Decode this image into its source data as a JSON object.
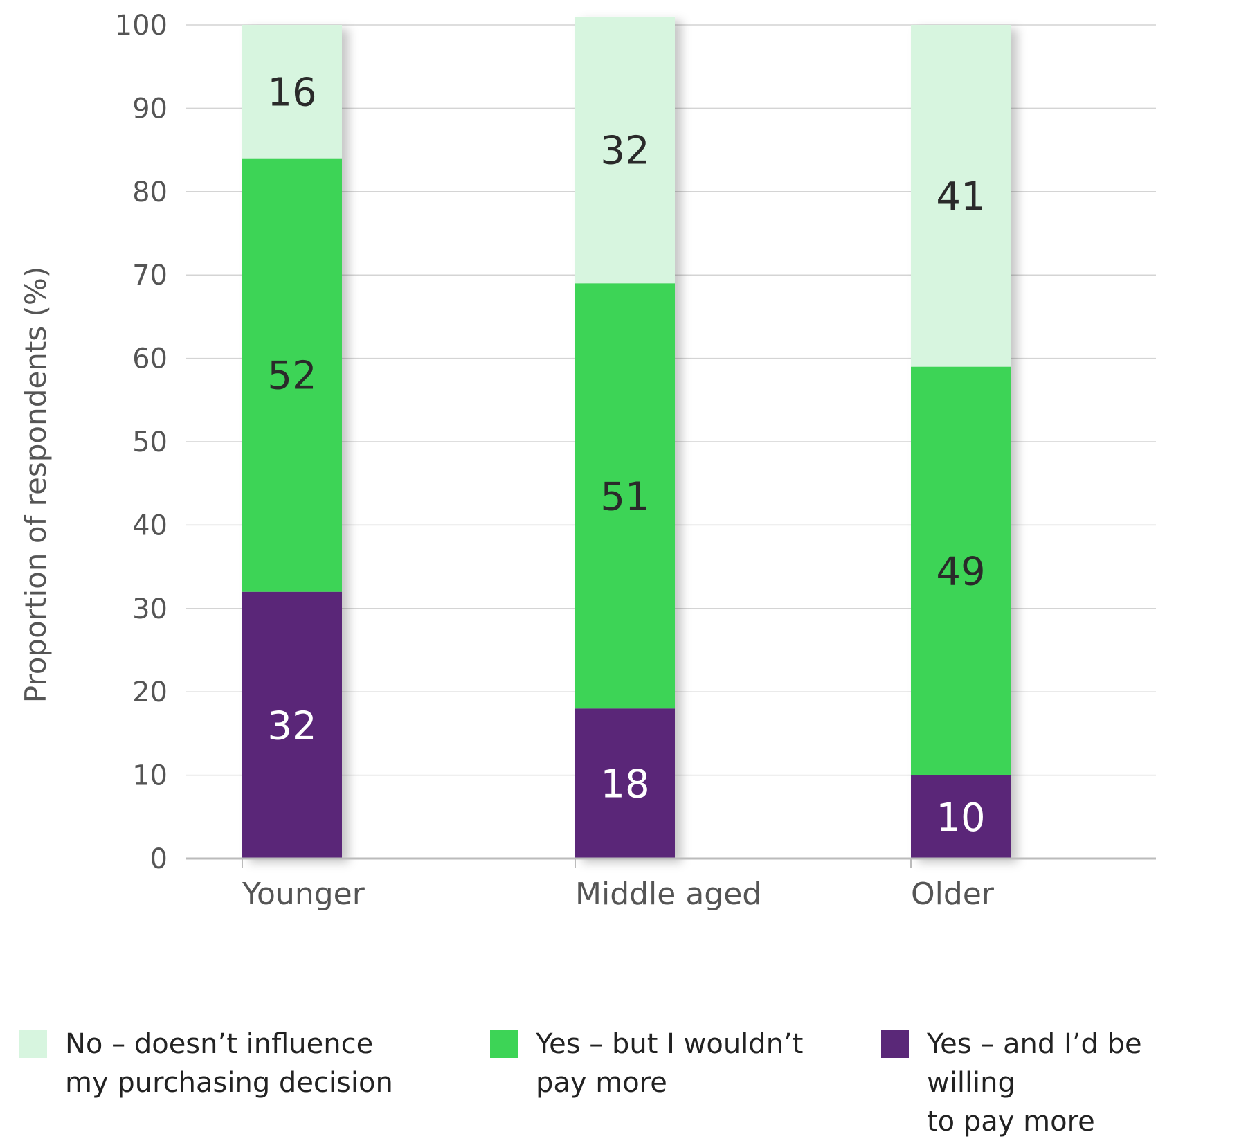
{
  "chart_data": {
    "type": "bar",
    "stacked": true,
    "categories": [
      "Younger",
      "Middle aged",
      "Older"
    ],
    "series": [
      {
        "name": "Yes – and I’d be willing to pay more",
        "values": [
          32,
          18,
          10
        ],
        "color": "#5a2878",
        "label_color": "#ffffff"
      },
      {
        "name": "Yes – but I wouldn’t pay more",
        "values": [
          52,
          51,
          49
        ],
        "color": "#3dd456",
        "label_color": "#2a2a2a"
      },
      {
        "name": "No – doesn’t influence my purchasing decision",
        "values": [
          16,
          32,
          41
        ],
        "color": "#d7f5df",
        "label_color": "#2a2a2a"
      }
    ],
    "ylabel": "Proportion of respondents (%)",
    "xlabel": "",
    "ylim": [
      0,
      100
    ],
    "yticks": [
      0,
      10,
      20,
      30,
      40,
      50,
      60,
      70,
      80,
      90,
      100
    ],
    "grid": true,
    "legend_position": "bottom"
  },
  "legend": [
    {
      "label": "No – doesn’t influence\nmy purchasing decision",
      "color": "#d7f5df"
    },
    {
      "label": "Yes – but I wouldn’t\npay more",
      "color": "#3dd456"
    },
    {
      "label": "Yes – and I’d be willing\nto pay more",
      "color": "#5a2878"
    }
  ]
}
